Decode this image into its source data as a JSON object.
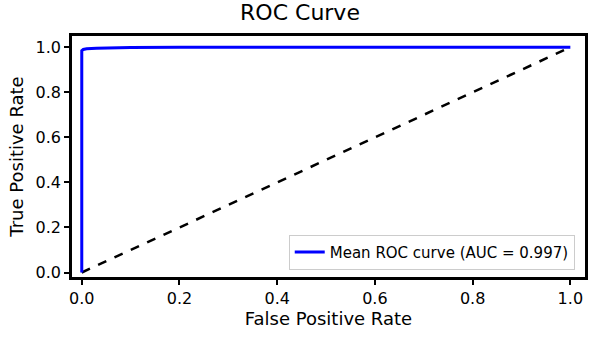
{
  "chart_data": {
    "type": "line",
    "title": "ROC Curve",
    "x_label": "False Positive Rate",
    "y_label": "True Positive Rate",
    "xlim": [
      -0.02,
      1.03
    ],
    "ylim": [
      -0.02,
      1.05
    ],
    "xticks": [
      {
        "value": 0,
        "label": "0.0"
      },
      0.2,
      0.4,
      0.6,
      0.8,
      {
        "value": 1,
        "label": "1.0"
      }
    ],
    "yticks": [
      {
        "value": 0,
        "label": "0.0"
      },
      0.2,
      0.4,
      0.6,
      0.8,
      {
        "value": 1,
        "label": "1.0"
      }
    ],
    "grid": false,
    "legend": "lower right",
    "series": [
      {
        "name": "Mean ROC curve (AUC = 0.997)",
        "color": "#0000ff",
        "line_style": "solid",
        "x": [
          0,
          0,
          0.003,
          0.01,
          0.03,
          0.06,
          0.1,
          0.2,
          0.4,
          0.6,
          0.8,
          1.0
        ],
        "values": [
          0,
          0.985,
          0.99,
          0.993,
          0.996,
          0.998,
          0.999,
          0.9995,
          1.0,
          1.0,
          1.0,
          1.0
        ]
      },
      {
        "color": "#000000",
        "line_style": "dash",
        "x": [
          0,
          1
        ],
        "values": [
          0,
          1
        ]
      }
    ]
  }
}
